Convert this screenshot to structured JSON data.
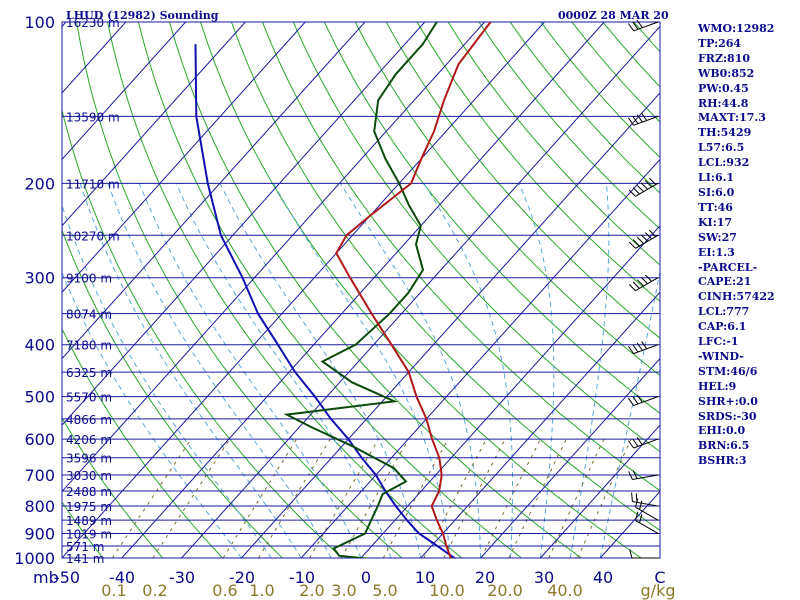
{
  "header": {
    "title": "LHUD (12982) Sounding",
    "date": "0000Z 28 MAR 20"
  },
  "stats": [
    "WMO:12982",
    "TP:264",
    "FRZ:810",
    "WB0:852",
    "PW:0.45",
    "RH:44.8",
    "MAXT:17.3",
    "TH:5429",
    "L57:6.5",
    "LCL:932",
    "LI:6.1",
    "SI:6.0",
    "TT:46",
    "KI:17",
    "SW:27",
    "EI:1.3",
    "-PARCEL-",
    "CAPE:21",
    "CINH:57422",
    "LCL:777",
    "CAP:6.1",
    "LFC:-1",
    "-WIND-",
    "STM:46/6",
    "HEL:9",
    "SHR+:0.0",
    "SRDS:-30",
    "EHI:0.0",
    "BRN:6.5",
    "BSHR:3"
  ],
  "colors": {
    "isobar": "#1a1aa0",
    "isotherm": "#1a1aa0",
    "dry_adiabat": "#2aa82a",
    "moist_adiabat": "#5aa8d8",
    "mixing_ratio": "#7a6a2a",
    "temperature": "#b01818",
    "dewpoint": "#0a4a0a",
    "parcel": "#1010b0"
  },
  "chart_data": {
    "type": "skew-t",
    "pressure_levels": [
      100,
      200,
      300,
      400,
      500,
      600,
      700,
      800,
      900,
      1000
    ],
    "pressure_labels": [
      "100",
      "200",
      "300",
      "400",
      "500",
      "600",
      "700",
      "800",
      "900",
      "1000"
    ],
    "pressure_unit_label": "mb",
    "temperature_ticks": [
      -50,
      -40,
      -30,
      -20,
      -10,
      0,
      10,
      20,
      30,
      40,
      "C"
    ],
    "temperature_tick_labels": [
      "-50",
      "-40",
      "-30",
      "-20",
      "-10",
      "0",
      "10",
      "20",
      "30",
      "40",
      "C"
    ],
    "mixing_ratio_labels": [
      "0.1",
      "0.2",
      "0.6",
      "1.0",
      "2.0",
      "3.0",
      "5.0",
      "10.0",
      "20.0",
      "40.0",
      "g/kg"
    ],
    "height_labels": [
      {
        "p": 100,
        "label": "16230 m"
      },
      {
        "p": 150,
        "label": "13590 m"
      },
      {
        "p": 200,
        "label": "11710 m"
      },
      {
        "p": 250,
        "label": "10270 m"
      },
      {
        "p": 300,
        "label": "9100 m"
      },
      {
        "p": 350,
        "label": "8074 m"
      },
      {
        "p": 400,
        "label": "7180 m"
      },
      {
        "p": 450,
        "label": "6325 m"
      },
      {
        "p": 500,
        "label": "5570 m"
      },
      {
        "p": 550,
        "label": "4866 m"
      },
      {
        "p": 600,
        "label": "4206 m"
      },
      {
        "p": 650,
        "label": "3596 m"
      },
      {
        "p": 700,
        "label": "3030 m"
      },
      {
        "p": 750,
        "label": "2488 m"
      },
      {
        "p": 800,
        "label": "1975 m"
      },
      {
        "p": 850,
        "label": "1489 m"
      },
      {
        "p": 900,
        "label": "1019 m"
      },
      {
        "p": 950,
        "label": "571 m"
      },
      {
        "p": 1000,
        "label": "141 m"
      }
    ],
    "temperature_profile": [
      [
        1010,
        16.5
      ],
      [
        1000,
        15
      ],
      [
        950,
        12.5
      ],
      [
        900,
        10
      ],
      [
        850,
        7
      ],
      [
        800,
        4
      ],
      [
        750,
        3
      ],
      [
        700,
        1
      ],
      [
        650,
        -2
      ],
      [
        600,
        -6
      ],
      [
        550,
        -10
      ],
      [
        500,
        -15
      ],
      [
        450,
        -20
      ],
      [
        400,
        -27
      ],
      [
        350,
        -35
      ],
      [
        300,
        -44
      ],
      [
        270,
        -50
      ],
      [
        250,
        -51
      ],
      [
        230,
        -50
      ],
      [
        200,
        -48
      ],
      [
        180,
        -50
      ],
      [
        160,
        -52
      ],
      [
        140,
        -55
      ],
      [
        120,
        -58
      ],
      [
        100,
        -59
      ]
    ],
    "dewpoint_profile": [
      [
        1010,
        4
      ],
      [
        990,
        -4
      ],
      [
        960,
        -6
      ],
      [
        900,
        -3
      ],
      [
        850,
        -4
      ],
      [
        800,
        -5
      ],
      [
        760,
        -6
      ],
      [
        720,
        -4
      ],
      [
        680,
        -8
      ],
      [
        620,
        -18
      ],
      [
        570,
        -28
      ],
      [
        540,
        -34
      ],
      [
        510,
        -18
      ],
      [
        470,
        -28
      ],
      [
        430,
        -36
      ],
      [
        400,
        -33
      ],
      [
        350,
        -32
      ],
      [
        320,
        -32
      ],
      [
        290,
        -33
      ],
      [
        260,
        -38
      ],
      [
        240,
        -40
      ],
      [
        220,
        -45
      ],
      [
        200,
        -50
      ],
      [
        180,
        -56
      ],
      [
        160,
        -62
      ],
      [
        140,
        -66
      ],
      [
        125,
        -67
      ],
      [
        110,
        -67
      ],
      [
        100,
        -68
      ]
    ],
    "parcel_profile": [
      [
        1010,
        16.5
      ],
      [
        950,
        11
      ],
      [
        900,
        6
      ],
      [
        850,
        2
      ],
      [
        800,
        -2
      ],
      [
        750,
        -6
      ],
      [
        700,
        -10
      ],
      [
        650,
        -15
      ],
      [
        600,
        -20
      ],
      [
        550,
        -26
      ],
      [
        500,
        -32
      ],
      [
        450,
        -39
      ],
      [
        400,
        -46
      ],
      [
        350,
        -54
      ],
      [
        300,
        -62
      ],
      [
        250,
        -72
      ],
      [
        200,
        -82
      ],
      [
        150,
        -94
      ],
      [
        110,
        -105
      ]
    ],
    "wind_barbs": [
      {
        "p": 1000,
        "dir": 270,
        "spd": 10
      },
      {
        "p": 900,
        "dir": 300,
        "spd": 15
      },
      {
        "p": 850,
        "dir": 300,
        "spd": 20
      },
      {
        "p": 800,
        "dir": 280,
        "spd": 15
      },
      {
        "p": 700,
        "dir": 260,
        "spd": 20
      },
      {
        "p": 600,
        "dir": 250,
        "spd": 25
      },
      {
        "p": 500,
        "dir": 250,
        "spd": 30
      },
      {
        "p": 400,
        "dir": 250,
        "spd": 40
      },
      {
        "p": 300,
        "dir": 240,
        "spd": 50
      },
      {
        "p": 250,
        "dir": 240,
        "spd": 60
      },
      {
        "p": 200,
        "dir": 240,
        "spd": 55
      },
      {
        "p": 150,
        "dir": 250,
        "spd": 40
      },
      {
        "p": 100,
        "dir": 250,
        "spd": 25
      }
    ]
  }
}
